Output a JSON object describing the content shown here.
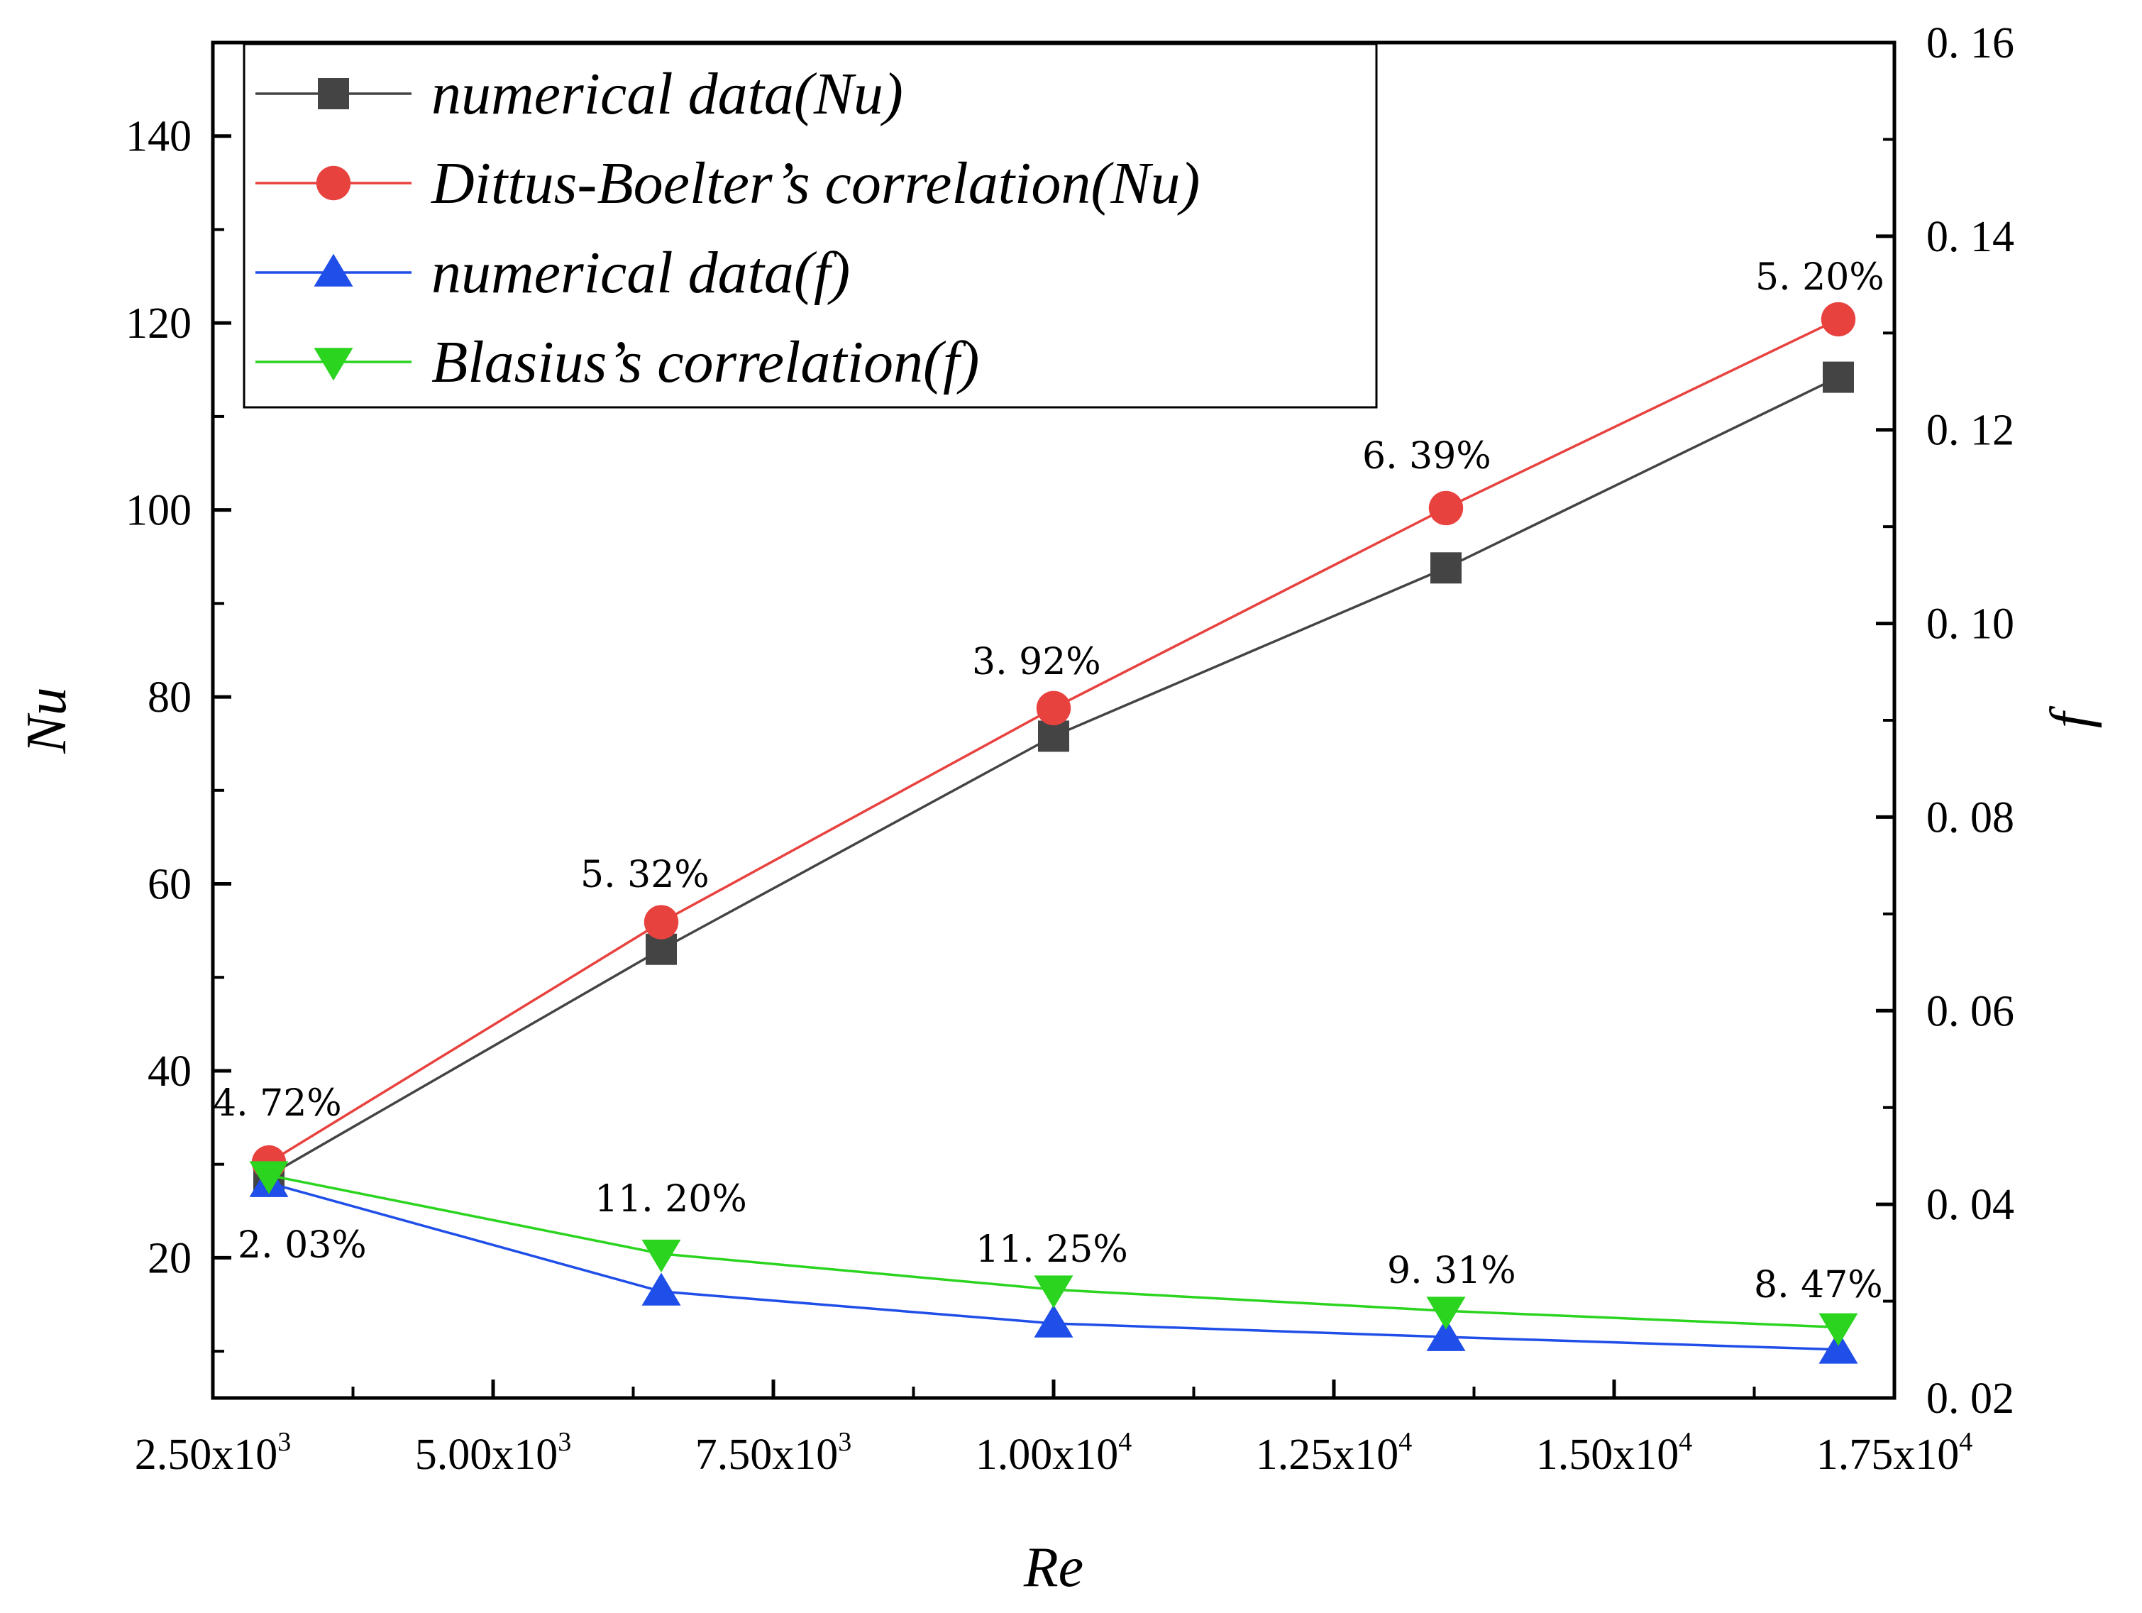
{
  "chart_data": {
    "type": "line",
    "xlabel": "Re",
    "ylabel_left": "Nu",
    "ylabel_right": "f",
    "x": [
      3000,
      6500,
      10000,
      13500,
      17000
    ],
    "xlim": [
      2500,
      17500
    ],
    "ylim_left": [
      5,
      150
    ],
    "ylim_right": [
      0.02,
      0.16
    ],
    "x_ticks": [
      {
        "value": 2500,
        "mantissa": "2.50x10",
        "exp": "3"
      },
      {
        "value": 5000,
        "mantissa": "5.00x10",
        "exp": "3"
      },
      {
        "value": 7500,
        "mantissa": "7.50x10",
        "exp": "3"
      },
      {
        "value": 10000,
        "mantissa": "1.00x10",
        "exp": "4"
      },
      {
        "value": 12500,
        "mantissa": "1.25x10",
        "exp": "4"
      },
      {
        "value": 15000,
        "mantissa": "1.50x10",
        "exp": "4"
      },
      {
        "value": 17500,
        "mantissa": "1.75x10",
        "exp": "4"
      }
    ],
    "y_left_ticks": [
      20,
      40,
      60,
      80,
      100,
      120,
      140
    ],
    "y_right_ticks": [
      "0. 02",
      "0. 04",
      "0. 06",
      "0. 08",
      "0. 10",
      "0. 12",
      "0. 14",
      "0. 16"
    ],
    "series": [
      {
        "name": "numerical data(Nu)",
        "axis": "left",
        "marker": "square",
        "color": "#444444",
        "values": [
          28.8,
          53.0,
          75.8,
          93.8,
          114.2
        ]
      },
      {
        "name": "Dittus-Boelter’s correlation(Nu)",
        "axis": "left",
        "marker": "circle",
        "color": "#e8423f",
        "values": [
          30.2,
          55.9,
          78.8,
          100.2,
          120.4
        ]
      },
      {
        "name": "numerical data(f)",
        "axis": "right",
        "marker": "triangle-up",
        "color": "#1f4ee8",
        "values": [
          0.0422,
          0.031,
          0.0277,
          0.0263,
          0.025
        ]
      },
      {
        "name": "Blasius’s correlation(f)",
        "axis": "right",
        "marker": "triangle-down",
        "color": "#2ad41f",
        "values": [
          0.043,
          0.0349,
          0.0312,
          0.029,
          0.0273
        ]
      }
    ],
    "annotations": [
      "4. 72%",
      "5. 32%",
      "3. 92%",
      "6. 39%",
      "5. 20%",
      "2. 03%",
      "11. 20%",
      "11. 25%",
      "9. 31%",
      "8. 47%"
    ],
    "legend_position": "top-left"
  }
}
